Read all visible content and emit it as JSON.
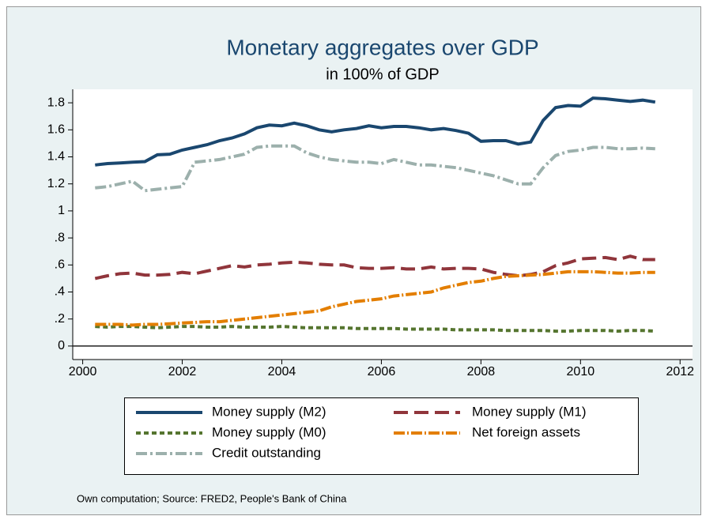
{
  "chart_data": {
    "type": "line",
    "title": "Monetary aggregates over GDP",
    "subtitle": "in 100% of GDP",
    "note": "Own computation; Source: FRED2, People's Bank of China",
    "x": [
      2000.25,
      2000.5,
      2000.75,
      2001,
      2001.25,
      2001.5,
      2001.75,
      2002,
      2002.25,
      2002.5,
      2002.75,
      2003,
      2003.25,
      2003.5,
      2003.75,
      2004,
      2004.25,
      2004.5,
      2004.75,
      2005,
      2005.25,
      2005.5,
      2005.75,
      2006,
      2006.25,
      2006.5,
      2006.75,
      2007,
      2007.25,
      2007.5,
      2007.75,
      2008,
      2008.25,
      2008.5,
      2008.75,
      2009,
      2009.25,
      2009.5,
      2009.75,
      2010,
      2010.25,
      2010.5,
      2010.75,
      2011,
      2011.25,
      2011.5
    ],
    "series": [
      {
        "name": "Money supply (M2)",
        "color": "#1a476f",
        "dash": "solid",
        "values": [
          1.34,
          1.35,
          1.355,
          1.36,
          1.365,
          1.415,
          1.42,
          1.45,
          1.47,
          1.49,
          1.52,
          1.54,
          1.57,
          1.615,
          1.635,
          1.63,
          1.65,
          1.63,
          1.6,
          1.585,
          1.6,
          1.61,
          1.63,
          1.615,
          1.625,
          1.625,
          1.615,
          1.6,
          1.61,
          1.595,
          1.575,
          1.515,
          1.52,
          1.52,
          1.495,
          1.51,
          1.67,
          1.765,
          1.78,
          1.775,
          1.835,
          1.83,
          1.82,
          1.81,
          1.82,
          1.805
        ]
      },
      {
        "name": "Money supply (M1)",
        "color": "#90353b",
        "dash": "longdash",
        "values": [
          0.5,
          0.52,
          0.535,
          0.54,
          0.525,
          0.525,
          0.53,
          0.545,
          0.535,
          0.555,
          0.575,
          0.595,
          0.585,
          0.6,
          0.605,
          0.615,
          0.62,
          0.615,
          0.605,
          0.6,
          0.6,
          0.58,
          0.575,
          0.575,
          0.58,
          0.57,
          0.57,
          0.585,
          0.57,
          0.575,
          0.575,
          0.57,
          0.545,
          0.53,
          0.52,
          0.53,
          0.55,
          0.595,
          0.615,
          0.645,
          0.65,
          0.655,
          0.64,
          0.665,
          0.64,
          0.64
        ]
      },
      {
        "name": "Money supply (M0)",
        "color": "#55752f",
        "dash": "shortdash",
        "values": [
          0.145,
          0.14,
          0.145,
          0.145,
          0.14,
          0.135,
          0.14,
          0.145,
          0.145,
          0.14,
          0.14,
          0.145,
          0.14,
          0.14,
          0.14,
          0.145,
          0.14,
          0.135,
          0.135,
          0.135,
          0.135,
          0.13,
          0.13,
          0.13,
          0.13,
          0.125,
          0.125,
          0.125,
          0.125,
          0.12,
          0.12,
          0.12,
          0.12,
          0.115,
          0.115,
          0.115,
          0.115,
          0.11,
          0.11,
          0.115,
          0.115,
          0.115,
          0.11,
          0.115,
          0.115,
          0.11
        ]
      },
      {
        "name": "Net foreign assets",
        "color": "#e37e00",
        "dash": "dashdot",
        "values": [
          0.16,
          0.16,
          0.16,
          0.155,
          0.16,
          0.16,
          0.165,
          0.17,
          0.175,
          0.18,
          0.18,
          0.19,
          0.2,
          0.21,
          0.22,
          0.23,
          0.24,
          0.25,
          0.26,
          0.29,
          0.31,
          0.33,
          0.34,
          0.35,
          0.37,
          0.38,
          0.39,
          0.4,
          0.43,
          0.45,
          0.47,
          0.48,
          0.5,
          0.515,
          0.52,
          0.525,
          0.53,
          0.54,
          0.55,
          0.55,
          0.55,
          0.545,
          0.54,
          0.54,
          0.545,
          0.545
        ]
      },
      {
        "name": "Credit outstanding",
        "color": "#9cb0ac",
        "dash": "longdashdot",
        "values": [
          1.17,
          1.18,
          1.2,
          1.22,
          1.15,
          1.16,
          1.17,
          1.18,
          1.36,
          1.37,
          1.38,
          1.4,
          1.42,
          1.47,
          1.48,
          1.48,
          1.48,
          1.43,
          1.4,
          1.38,
          1.37,
          1.36,
          1.36,
          1.35,
          1.38,
          1.36,
          1.34,
          1.34,
          1.33,
          1.32,
          1.3,
          1.28,
          1.26,
          1.23,
          1.2,
          1.2,
          1.32,
          1.41,
          1.44,
          1.45,
          1.47,
          1.47,
          1.46,
          1.46,
          1.465,
          1.46
        ]
      }
    ],
    "xlim": [
      1999.8,
      2012.25
    ],
    "xticks": [
      2000,
      2002,
      2004,
      2006,
      2008,
      2010,
      2012
    ],
    "ylim": [
      -0.1,
      1.9
    ],
    "yticks": [
      0,
      {
        "value": 0.2,
        "label": ".2"
      },
      {
        "value": 0.4,
        "label": ".4"
      },
      {
        "value": 0.6,
        "label": ".6"
      },
      {
        "value": 0.8,
        "label": ".8"
      },
      1,
      {
        "value": 1.2,
        "label": "1.2"
      },
      {
        "value": 1.4,
        "label": "1.4"
      },
      {
        "value": 1.6,
        "label": "1.6"
      },
      {
        "value": 1.8,
        "label": "1.8"
      }
    ],
    "reference_line": 0,
    "grid": false,
    "legend_position": "bottom"
  }
}
